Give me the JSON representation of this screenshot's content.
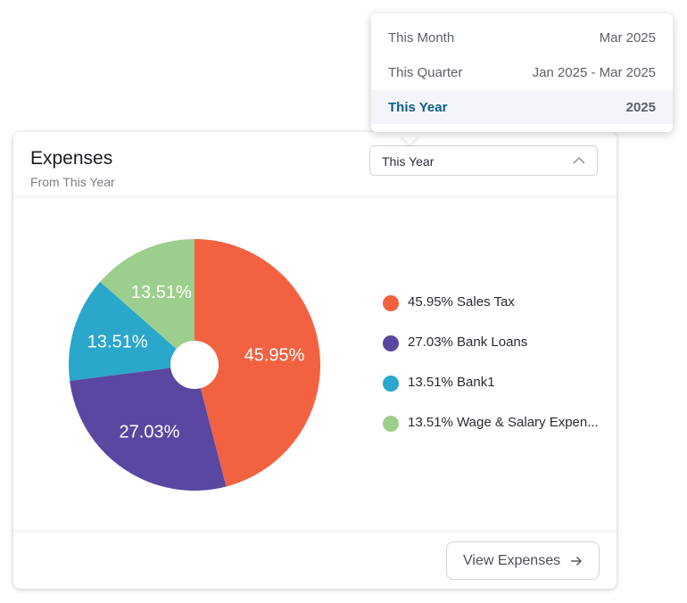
{
  "card": {
    "title": "Expenses",
    "subtitle": "From This Year",
    "period_select_value": "This Year",
    "view_button_label": "View Expenses"
  },
  "period_dropdown": {
    "options": [
      {
        "label": "This Month",
        "range": "Mar 2025",
        "selected": false
      },
      {
        "label": "This Quarter",
        "range": "Jan 2025 - Mar 2025",
        "selected": false
      },
      {
        "label": "This Year",
        "range": "2025",
        "selected": true
      }
    ]
  },
  "legend": [
    {
      "text": "45.95% Sales Tax",
      "color": "#f26241"
    },
    {
      "text": "27.03% Bank Loans",
      "color": "#5a47a1"
    },
    {
      "text": "13.51% Bank1",
      "color": "#2aa7cb"
    },
    {
      "text": "13.51% Wage & Salary Expen...",
      "color": "#9ccf8d"
    }
  ],
  "chart_data": {
    "type": "pie",
    "categories": [
      "Sales Tax",
      "Bank Loans",
      "Bank1",
      "Wage & Salary Expen..."
    ],
    "values": [
      45.95,
      27.03,
      13.51,
      13.51
    ],
    "data_labels": [
      "45.95%",
      "27.03%",
      "13.51%",
      "13.51%"
    ],
    "colors": [
      "#f26241",
      "#5a47a1",
      "#2aa7cb",
      "#9ccf8d"
    ],
    "legend_position": "right"
  },
  "icons": {
    "select_chevron": "chevron-up-icon",
    "button_arrow": "arrow-right-icon"
  }
}
